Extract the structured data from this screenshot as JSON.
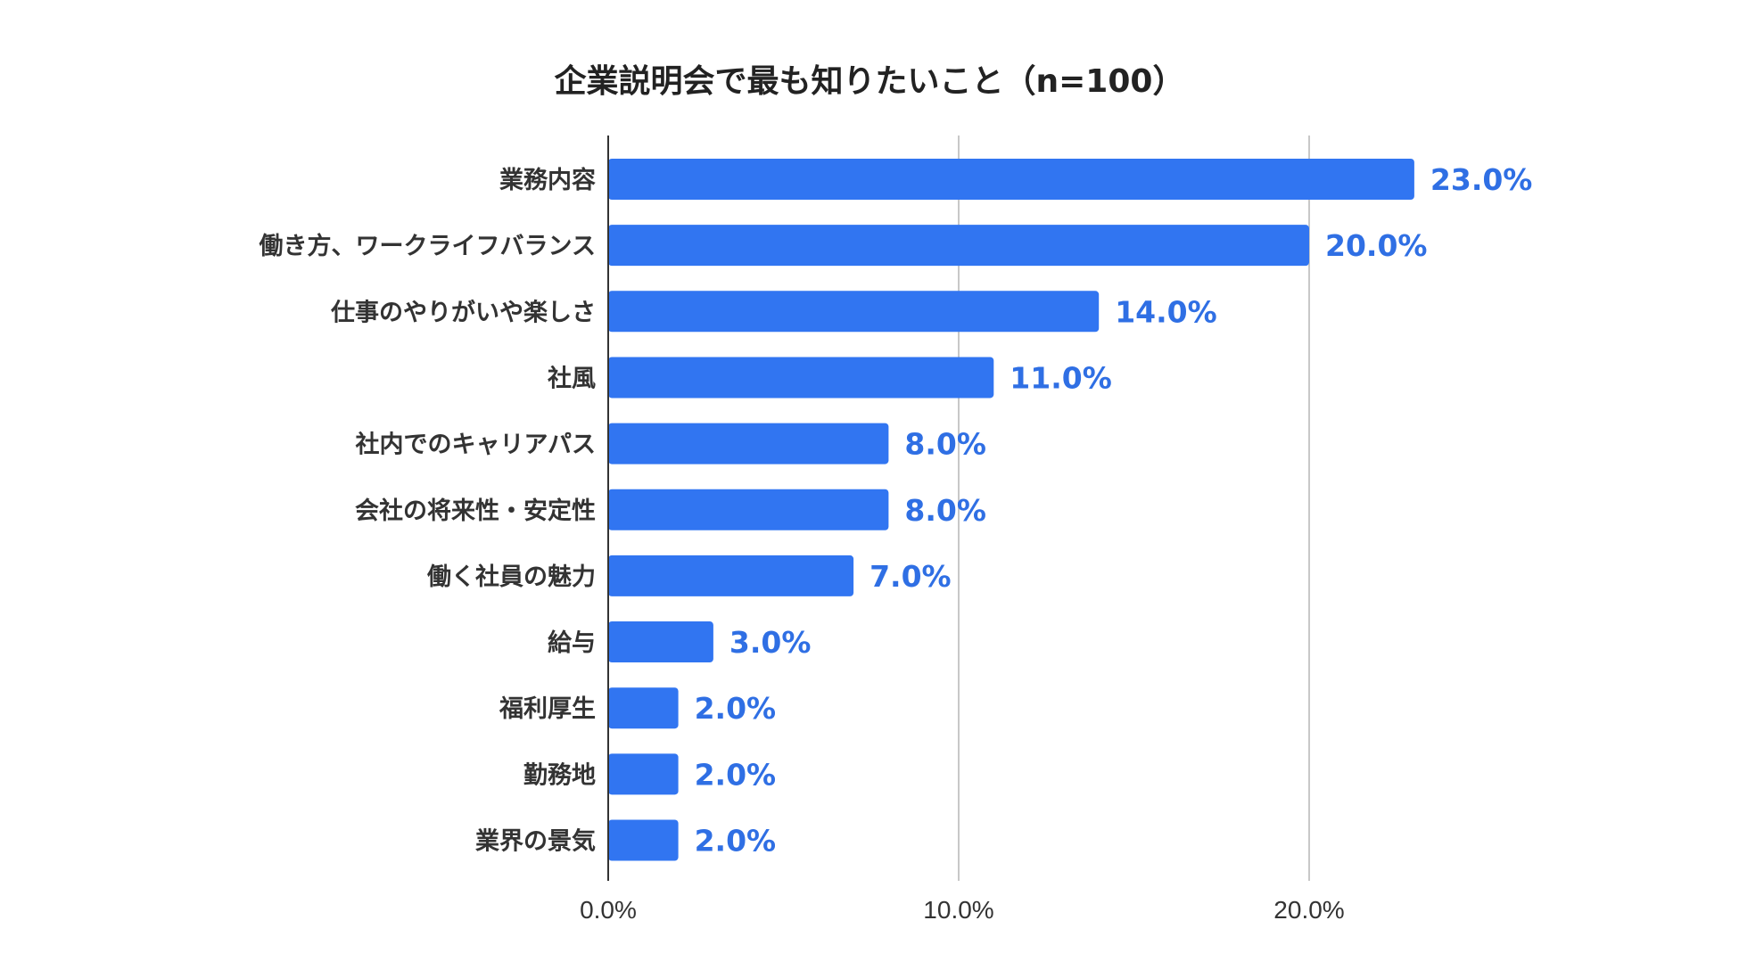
{
  "chart_data": {
    "type": "bar",
    "orientation": "horizontal",
    "title": "企業説明会で最も知りたいこと（n=100）",
    "categories": [
      "業務内容",
      "働き方、ワークライフバランス",
      "仕事のやりがいや楽しさ",
      "社風",
      "社内でのキャリアパス",
      "会社の将来性・安定性",
      "働く社員の魅力",
      "給与",
      "福利厚生",
      "勤務地",
      "業界の景気"
    ],
    "values": [
      23.0,
      20.0,
      14.0,
      11.0,
      8.0,
      8.0,
      7.0,
      3.0,
      2.0,
      2.0,
      2.0
    ],
    "value_labels": [
      "23.0%",
      "20.0%",
      "14.0%",
      "11.0%",
      "8.0%",
      "8.0%",
      "7.0%",
      "3.0%",
      "2.0%",
      "2.0%",
      "2.0%"
    ],
    "xlim": [
      0,
      20
    ],
    "x_ticks": [
      0,
      10,
      20
    ],
    "x_tick_labels": [
      "0.0%",
      "10.0%",
      "20.0%"
    ],
    "grid": true,
    "xlabel": "",
    "ylabel": "",
    "colors": {
      "bar": "#3175f1",
      "value_label": "#2f6fe4",
      "grid": "#c8c8c8",
      "axis": "#333333"
    }
  }
}
